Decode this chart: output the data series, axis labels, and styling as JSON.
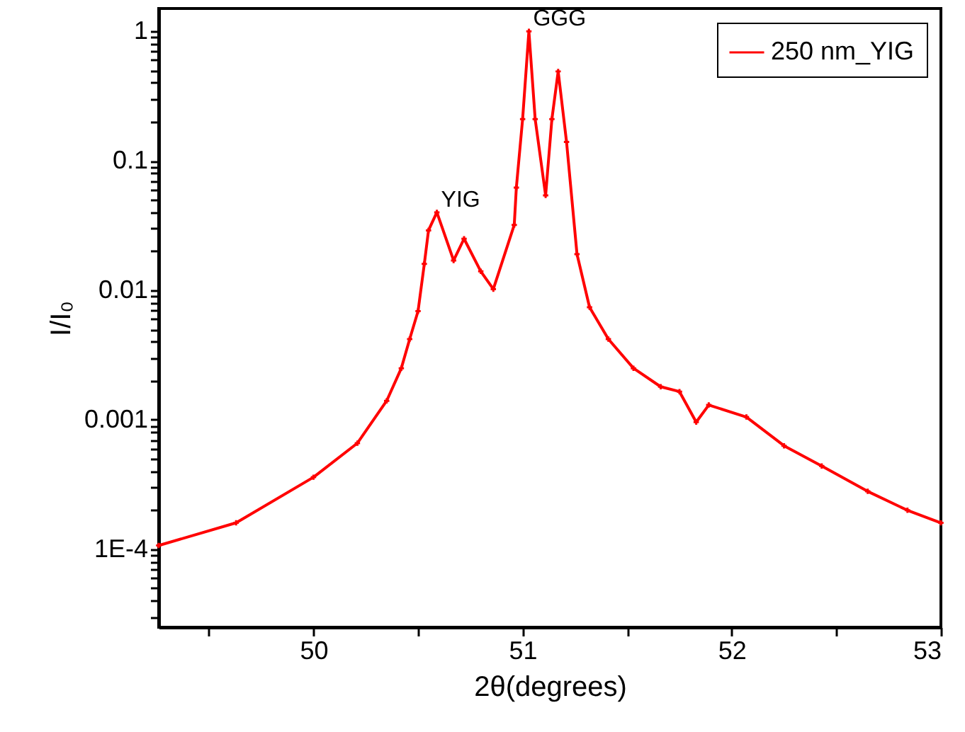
{
  "chart_data": {
    "type": "line",
    "xlabel": "2θ(degrees)",
    "ylabel": "I/I₀",
    "log": "y",
    "grid": false,
    "legend": "top right",
    "marker": "cross",
    "line_style": "solid",
    "xlim": [
      49.26,
      53
    ],
    "xticks": [
      {
        "value": 49.5,
        "label": null
      },
      50,
      {
        "value": 50.5,
        "label": null
      },
      51,
      {
        "value": 51.5,
        "label": null
      },
      52,
      {
        "value": 52.5,
        "label": null
      },
      53
    ],
    "ylim": [
      2.5e-05,
      1.5
    ],
    "yticks": [
      1,
      0.1,
      0.01,
      0.001,
      {
        "value": 0.0001,
        "label": "1E-4"
      },
      {
        "value": 3e-05,
        "label": null
      },
      {
        "value": 4e-05,
        "label": null
      },
      {
        "value": 5e-05,
        "label": null
      },
      {
        "value": 6e-05,
        "label": null
      },
      {
        "value": 7e-05,
        "label": null
      },
      {
        "value": 8e-05,
        "label": null
      },
      {
        "value": 9e-05,
        "label": null
      },
      {
        "value": 0.0002,
        "label": null
      },
      {
        "value": 0.0003,
        "label": null
      },
      {
        "value": 0.0004,
        "label": null
      },
      {
        "value": 0.0005,
        "label": null
      },
      {
        "value": 0.0006,
        "label": null
      },
      {
        "value": 0.0007,
        "label": null
      },
      {
        "value": 0.0008,
        "label": null
      },
      {
        "value": 0.0009,
        "label": null
      },
      {
        "value": 0.002,
        "label": null
      },
      {
        "value": 0.003,
        "label": null
      },
      {
        "value": 0.004,
        "label": null
      },
      {
        "value": 0.005,
        "label": null
      },
      {
        "value": 0.006,
        "label": null
      },
      {
        "value": 0.007,
        "label": null
      },
      {
        "value": 0.008,
        "label": null
      },
      {
        "value": 0.009,
        "label": null
      },
      {
        "value": 0.02,
        "label": null
      },
      {
        "value": 0.03,
        "label": null
      },
      {
        "value": 0.04,
        "label": null
      },
      {
        "value": 0.05,
        "label": null
      },
      {
        "value": 0.06,
        "label": null
      },
      {
        "value": 0.07,
        "label": null
      },
      {
        "value": 0.08,
        "label": null
      },
      {
        "value": 0.09,
        "label": null
      },
      {
        "value": 0.2,
        "label": null
      },
      {
        "value": 0.3,
        "label": null
      },
      {
        "value": 0.4,
        "label": null
      },
      {
        "value": 0.5,
        "label": null
      },
      {
        "value": 0.6,
        "label": null
      },
      {
        "value": 0.7,
        "label": null
      },
      {
        "value": 0.8,
        "label": null
      },
      {
        "value": 0.9,
        "label": null
      }
    ],
    "annotations": [
      {
        "text": "YIG",
        "x": 50.59,
        "y": 0.04
      },
      {
        "text": "GGG",
        "x": 51.03,
        "y": 1.0
      }
    ],
    "series": [
      {
        "name": "250 nm_YIG",
        "color": "#ff0000",
        "x": [
          49.26,
          49.63,
          50.0,
          50.21,
          50.35,
          50.42,
          50.46,
          50.5,
          50.53,
          50.55,
          50.59,
          50.67,
          50.72,
          50.8,
          50.86,
          50.96,
          50.97,
          51.0,
          51.03,
          51.06,
          51.11,
          51.14,
          51.17,
          51.21,
          51.26,
          51.32,
          51.41,
          51.53,
          51.66,
          51.75,
          51.83,
          51.89,
          52.07,
          52.25,
          52.43,
          52.65,
          52.84,
          53.0
        ],
        "values": [
          0.000107,
          0.00016,
          0.00036,
          0.00066,
          0.0014,
          0.0025,
          0.0042,
          0.0069,
          0.016,
          0.029,
          0.04,
          0.017,
          0.025,
          0.014,
          0.0102,
          0.032,
          0.062,
          0.21,
          1.0,
          0.21,
          0.054,
          0.21,
          0.49,
          0.14,
          0.019,
          0.0074,
          0.0042,
          0.0025,
          0.0018,
          0.00165,
          0.00096,
          0.0013,
          0.00105,
          0.00063,
          0.00044,
          0.00028,
          0.0002,
          0.00016
        ]
      }
    ]
  }
}
